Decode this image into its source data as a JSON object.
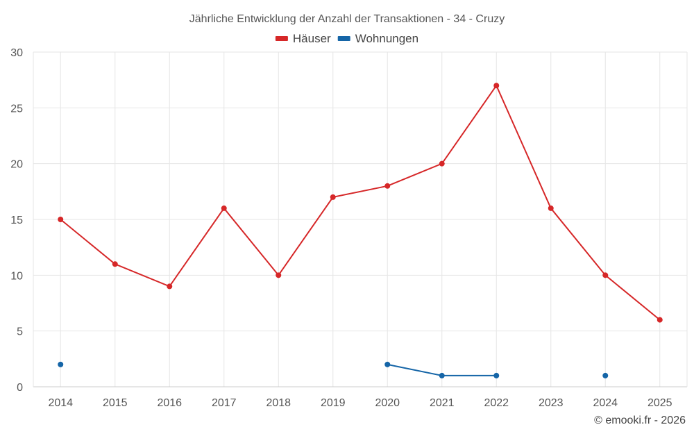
{
  "chart_data": {
    "type": "line",
    "title": "Jährliche Entwicklung der Anzahl der Transaktionen - 34 - Cruzy",
    "categories": [
      "2014",
      "2015",
      "2016",
      "2017",
      "2018",
      "2019",
      "2020",
      "2021",
      "2022",
      "2023",
      "2024",
      "2025"
    ],
    "ylim": [
      0,
      30
    ],
    "yticks": [
      0,
      5,
      10,
      15,
      20,
      25,
      30
    ],
    "grid": true,
    "legend_position": "top-center",
    "series": [
      {
        "name": "Häuser",
        "color": "#d62728",
        "values": [
          15,
          11,
          9,
          16,
          10,
          17,
          18,
          20,
          27,
          16,
          10,
          6
        ]
      },
      {
        "name": "Wohnungen",
        "color": "#1565a7",
        "values": [
          2,
          null,
          null,
          null,
          null,
          null,
          2,
          1,
          1,
          null,
          1,
          null
        ]
      }
    ]
  },
  "credit": "© emooki.fr - 2026"
}
